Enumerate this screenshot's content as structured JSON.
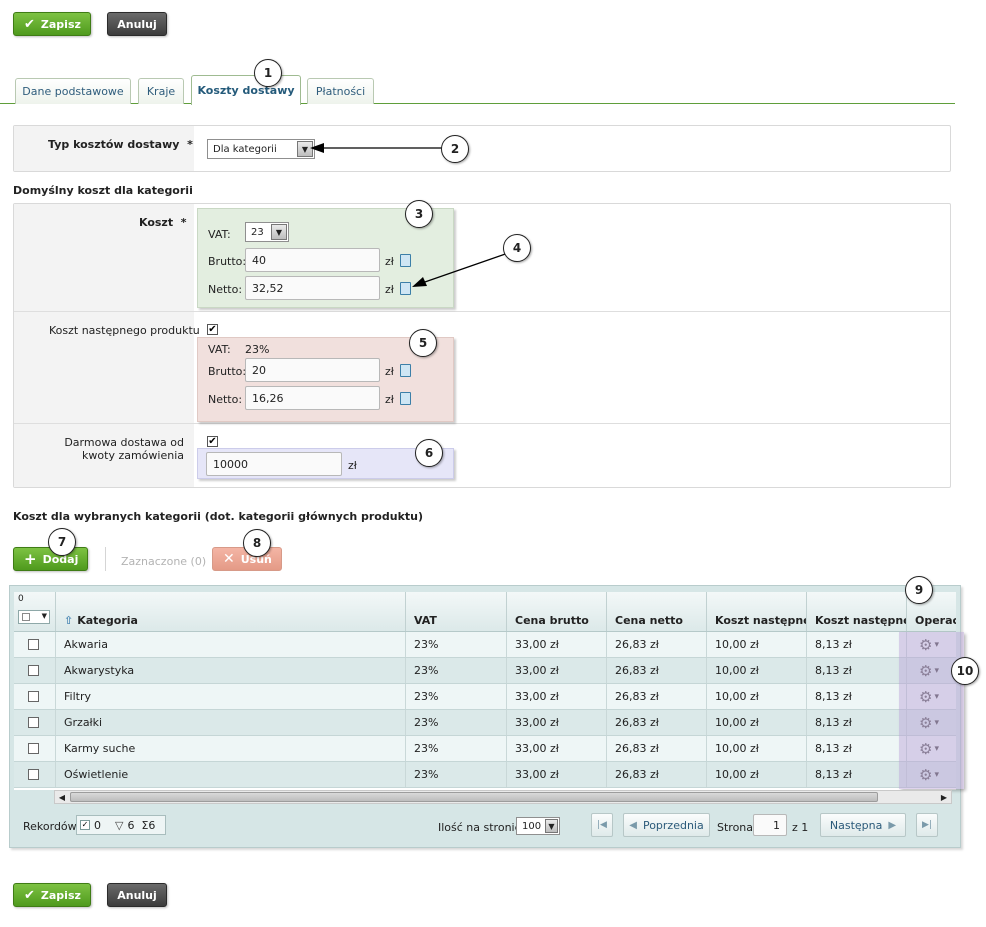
{
  "toolbar_top": {
    "save": "Zapisz",
    "cancel": "Anuluj"
  },
  "toolbar_bottom": {
    "save": "Zapisz",
    "cancel": "Anuluj"
  },
  "tabs": [
    {
      "label": "Dane podstawowe"
    },
    {
      "label": "Kraje"
    },
    {
      "label": "Koszty dostawy",
      "active": true
    },
    {
      "label": "Płatności"
    }
  ],
  "callouts": [
    "1",
    "2",
    "3",
    "4",
    "5",
    "6",
    "7",
    "8",
    "9",
    "10"
  ],
  "shipping_type": {
    "label": "Typ kosztów dostawy",
    "required": "*",
    "value": "Dla kategorii"
  },
  "default_section": {
    "title": "Domyślny koszt dla kategorii"
  },
  "cost": {
    "label": "Koszt",
    "required": "*",
    "vat_label": "VAT:",
    "vat_value": "23",
    "gross_label": "Brutto:",
    "gross_value": "40",
    "net_label": "Netto:",
    "net_value": "32,52",
    "currency": "zł"
  },
  "next_product": {
    "label": "Koszt następnego produktu",
    "checked": "✔",
    "vat_label": "VAT:",
    "vat_value": "23%",
    "gross_label": "Brutto:",
    "gross_value": "20",
    "net_label": "Netto:",
    "net_value": "16,26",
    "currency": "zł"
  },
  "free_shipping": {
    "label": "Darmowa dostawa od kwoty zamówienia",
    "checked": "✔",
    "value": "10000",
    "currency": "zł"
  },
  "category_section": {
    "title": "Koszt dla wybranych kategorii (dot. kategorii głównych produktu)"
  },
  "grid_toolbar": {
    "add": "Dodaj",
    "selected": "Zaznaczone (0)",
    "delete": "Usuń"
  },
  "grid": {
    "selected_count": "0",
    "headers": [
      "Kategoria",
      "VAT",
      "Cena brutto",
      "Cena netto",
      "Koszt następneg",
      "Koszt następneg",
      "Operac"
    ],
    "rows": [
      [
        "Akwaria",
        "23%",
        "33,00 zł",
        "26,83 zł",
        "10,00 zł",
        "8,13 zł"
      ],
      [
        "Akwarystyka",
        "23%",
        "33,00 zł",
        "26,83 zł",
        "10,00 zł",
        "8,13 zł"
      ],
      [
        "Filtry",
        "23%",
        "33,00 zł",
        "26,83 zł",
        "10,00 zł",
        "8,13 zł"
      ],
      [
        "Grzałki",
        "23%",
        "33,00 zł",
        "26,83 zł",
        "10,00 zł",
        "8,13 zł"
      ],
      [
        "Karmy suche",
        "23%",
        "33,00 zł",
        "26,83 zł",
        "10,00 zł",
        "8,13 zł"
      ],
      [
        "Oświetlenie",
        "23%",
        "33,00 zł",
        "26,83 zł",
        "10,00 zł",
        "8,13 zł"
      ]
    ]
  },
  "footer": {
    "records_label": "Rekordów",
    "rec_selected": "0",
    "rec_filtered": "6",
    "rec_total": "Σ6",
    "per_page_label": "Ilość na stronie",
    "per_page_value": "100",
    "prev": "Poprzednia",
    "page_label": "Strona",
    "page_value": "1",
    "page_of": "z 1",
    "next": "Następna"
  },
  "colors": {
    "green": "#5aa524",
    "cost_box": "#e3eee0",
    "next_box": "#f1e0dd",
    "free_box": "#e6e6f8",
    "ops_col": "#d9cce6"
  }
}
